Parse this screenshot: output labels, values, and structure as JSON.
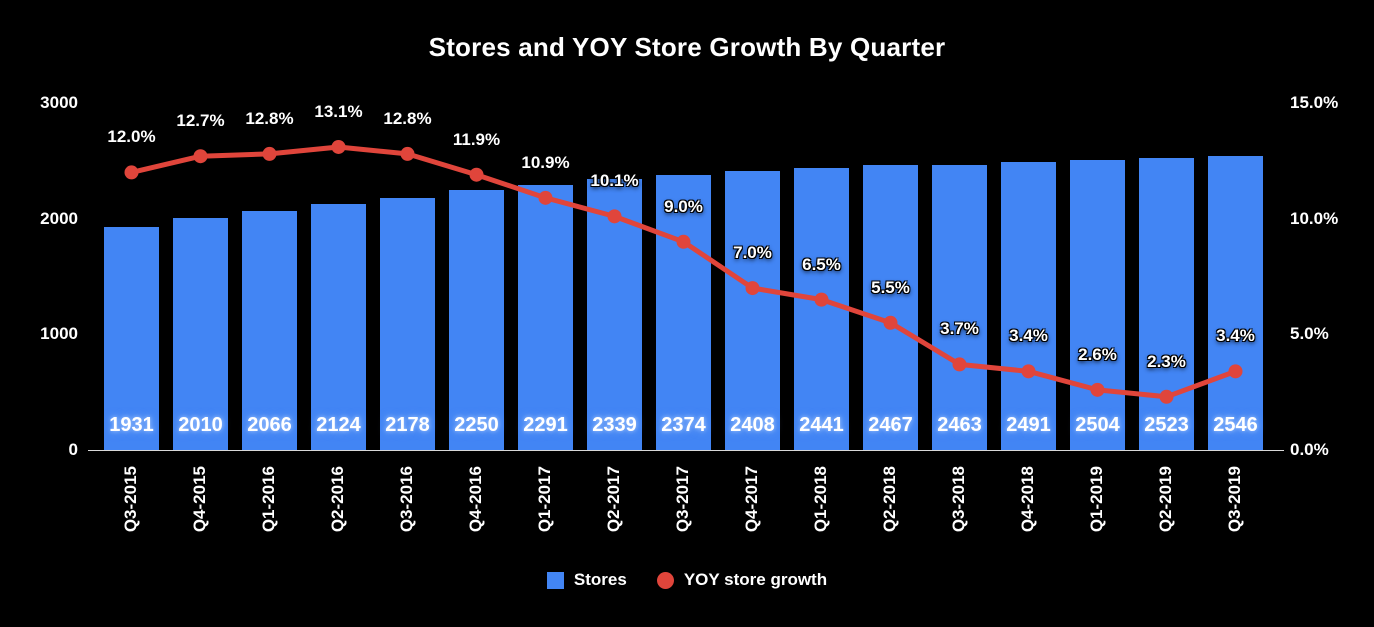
{
  "colors": {
    "background": "#000000",
    "text": "#FFFFFF",
    "bar": "#4285F4",
    "line": "#E0453B",
    "axis_line": "#D9D9D9"
  },
  "legend": [
    {
      "label": "Stores",
      "marker": "square-icon",
      "color": "#4285F4"
    },
    {
      "label": "YOY store growth",
      "marker": "circle-icon",
      "color": "#E0453B"
    }
  ],
  "chart_data": {
    "type": "bar",
    "subtype": "bar+line combo, dual axis",
    "title": "Stores and YOY Store Growth By Quarter",
    "xlabel": "",
    "ylabel_left": "",
    "ylabel_right": "",
    "grid": false,
    "legend_position": "bottom",
    "categories": [
      "Q3-2015",
      "Q4-2015",
      "Q1-2016",
      "Q2-2016",
      "Q3-2016",
      "Q4-2016",
      "Q1-2017",
      "Q2-2017",
      "Q3-2017",
      "Q4-2017",
      "Q1-2018",
      "Q2-2018",
      "Q3-2018",
      "Q4-2018",
      "Q1-2019",
      "Q2-2019",
      "Q3-2019"
    ],
    "series": [
      {
        "name": "Stores",
        "type": "bar",
        "axis": "left",
        "values": [
          1931,
          2010,
          2066,
          2124,
          2178,
          2250,
          2291,
          2339,
          2374,
          2408,
          2441,
          2467,
          2463,
          2491,
          2504,
          2523,
          2546
        ],
        "labels": [
          "1931",
          "2010",
          "2066",
          "2124",
          "2178",
          "2250",
          "2291",
          "2339",
          "2374",
          "2408",
          "2441",
          "2467",
          "2463",
          "2491",
          "2504",
          "2523",
          "2546"
        ]
      },
      {
        "name": "YOY store growth",
        "type": "line",
        "axis": "right",
        "values": [
          12.0,
          12.7,
          12.8,
          13.1,
          12.8,
          11.9,
          10.9,
          10.1,
          9.0,
          7.0,
          6.5,
          5.5,
          3.7,
          3.4,
          2.6,
          2.3,
          3.4
        ],
        "labels": [
          "12.0%",
          "12.7%",
          "12.8%",
          "13.1%",
          "12.8%",
          "11.9%",
          "10.9%",
          "10.1%",
          "9.0%",
          "7.0%",
          "6.5%",
          "5.5%",
          "3.7%",
          "3.4%",
          "2.6%",
          "2.3%",
          "3.4%"
        ]
      }
    ],
    "left_axis": {
      "min": 0,
      "max": 3000,
      "tick_values": [
        0,
        1000,
        2000,
        3000
      ],
      "tick_labels": [
        "0",
        "1000",
        "2000",
        "3000"
      ]
    },
    "right_axis": {
      "min": 0,
      "max": 15,
      "tick_values": [
        0,
        5,
        10,
        15
      ],
      "tick_labels": [
        "0.0%",
        "5.0%",
        "10.0%",
        "15.0%"
      ]
    }
  }
}
